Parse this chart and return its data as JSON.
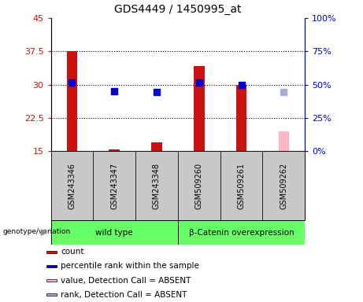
{
  "title": "GDS4449 / 1450995_at",
  "samples": [
    "GSM243346",
    "GSM243347",
    "GSM243348",
    "GSM509260",
    "GSM509261",
    "GSM509262"
  ],
  "count_values": [
    37.5,
    15.3,
    17.0,
    34.2,
    30.0,
    null
  ],
  "count_absent": [
    null,
    null,
    null,
    null,
    null,
    19.5
  ],
  "rank_values": [
    30.5,
    28.5,
    28.3,
    30.5,
    30.0,
    null
  ],
  "rank_absent": [
    null,
    null,
    null,
    null,
    null,
    28.3
  ],
  "ylim_left": [
    15,
    45
  ],
  "yticks_left": [
    15,
    22.5,
    30,
    37.5,
    45
  ],
  "ytick_labels_left": [
    "15",
    "22.5",
    "30",
    "37.5",
    "45"
  ],
  "yticks_right_pos": [
    15,
    22.5,
    30,
    37.5,
    45
  ],
  "ytick_labels_right": [
    "0%",
    "25%",
    "50%",
    "75%",
    "100%"
  ],
  "groups": [
    {
      "label": "wild type",
      "start": 0,
      "end": 3
    },
    {
      "label": "β-Catenin overexpression",
      "start": 3,
      "end": 6
    }
  ],
  "group_color": "#66ff66",
  "bar_color_present": "#cc1111",
  "bar_color_absent": "#ffb6c1",
  "rank_color_present": "#0000cc",
  "rank_color_absent": "#aaaacc",
  "bar_width": 0.25,
  "rank_marker_size": 40,
  "plot_bg_color": "#ffffff",
  "sample_area_color": "#c8c8c8",
  "genotype_label": "genotype/variation",
  "legend_items": [
    {
      "label": "count",
      "color": "#cc1111"
    },
    {
      "label": "percentile rank within the sample",
      "color": "#0000cc"
    },
    {
      "label": "value, Detection Call = ABSENT",
      "color": "#ffb6c1"
    },
    {
      "label": "rank, Detection Call = ABSENT",
      "color": "#aaaacc"
    }
  ],
  "dotted_lines": [
    37.5,
    30.0,
    22.5
  ],
  "baseline": 15,
  "figsize": [
    4.61,
    3.84
  ],
  "dpi": 100
}
